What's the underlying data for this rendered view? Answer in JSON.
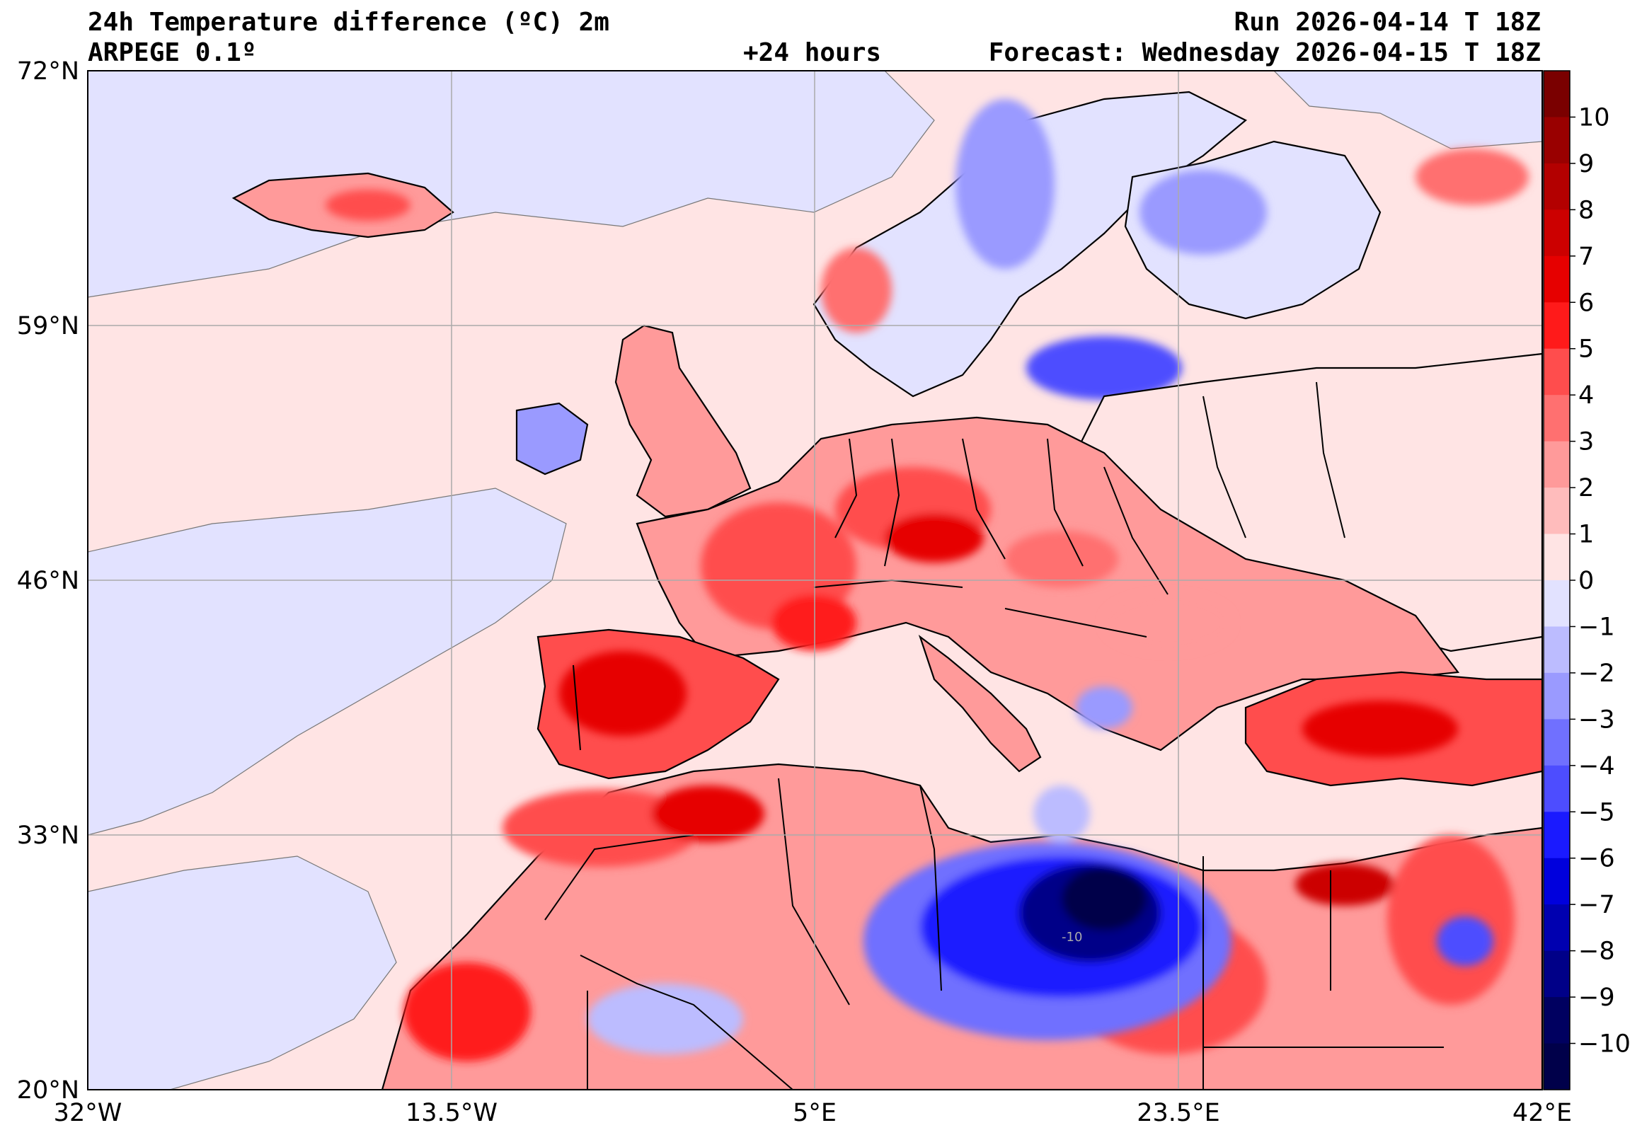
{
  "header": {
    "title": "24h Temperature difference (ºC) 2m",
    "model": "ARPEGE 0.1º",
    "lead": "+24 hours",
    "run": "Run 2026-04-14 T 18Z",
    "forecast": "Forecast: Wednesday 2026-04-15 T 18Z"
  },
  "axes": {
    "lat_labels": [
      "72°N",
      "59°N",
      "46°N",
      "33°N",
      "20°N"
    ],
    "lon_labels": [
      "32°W",
      "13.5°W",
      "5°E",
      "23.5°E",
      "42°E"
    ],
    "lat_values": [
      72,
      59,
      46,
      33,
      20
    ],
    "lon_values": [
      -32,
      -13.5,
      5,
      23.5,
      42
    ],
    "lat_range": [
      20,
      72
    ],
    "lon_range": [
      -32,
      42
    ]
  },
  "colorbar": {
    "labels": [
      "10",
      "9",
      "8",
      "7",
      "6",
      "5",
      "4",
      "3",
      "2",
      "1",
      "0",
      "−1",
      "−2",
      "−3",
      "−4",
      "−5",
      "−6",
      "−7",
      "−8",
      "−9",
      "−10"
    ],
    "values": [
      10,
      9,
      8,
      7,
      6,
      5,
      4,
      3,
      2,
      1,
      0,
      -1,
      -2,
      -3,
      -4,
      -5,
      -6,
      -7,
      -8,
      -9,
      -10
    ],
    "colors": [
      "#7a0000",
      "#990000",
      "#b30000",
      "#cc0000",
      "#e60000",
      "#ff1a1a",
      "#ff4d4d",
      "#ff7070",
      "#ff9a9a",
      "#ffbcbc",
      "#ffe4e4",
      "#e2e2ff",
      "#bcbcff",
      "#9a9aff",
      "#7070ff",
      "#4d4dff",
      "#1a1aff",
      "#0000dd",
      "#0000b0",
      "#000088",
      "#000060",
      "#00004a"
    ]
  },
  "annotations": {
    "contour_label": "-10"
  },
  "colors": {
    "ocean": "#ffe4e4",
    "coast": "#000000",
    "grid": "#aaaaaa"
  }
}
